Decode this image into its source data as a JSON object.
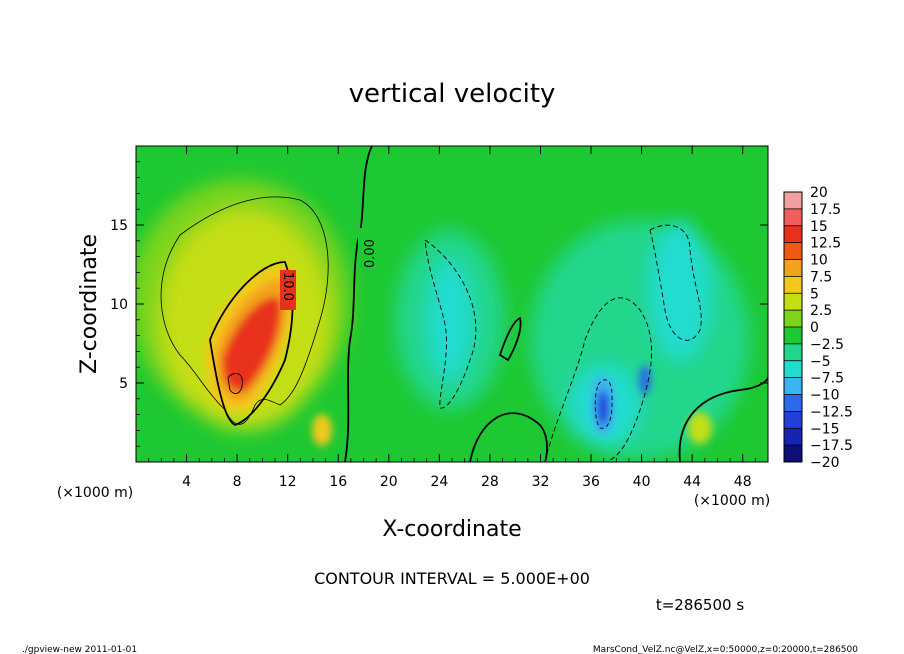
{
  "chart_data": {
    "type": "heatmap",
    "title": "vertical velocity",
    "xlabel": "X-coordinate",
    "ylabel": "Z-coordinate",
    "x_unit_label": "(×1000 m)",
    "x_unit_label_right": "(×1000 m)",
    "xlim": [
      0,
      50
    ],
    "ylim": [
      0,
      20
    ],
    "xticks": [
      4,
      8,
      12,
      16,
      20,
      24,
      28,
      32,
      36,
      40,
      44,
      48
    ],
    "yticks": [
      5,
      10,
      15
    ],
    "colorbar": {
      "levels": [
        20,
        17.5,
        15,
        12.5,
        10,
        7.5,
        5,
        2.5,
        0,
        -2.5,
        -5,
        -7.5,
        -10,
        -12.5,
        -15,
        -17.5,
        -20
      ],
      "labels": [
        "20",
        "17.5",
        "15",
        "12.5",
        "10",
        "7.5",
        "5",
        "2.5",
        "0",
        "−2.5",
        "−5",
        "−7.5",
        "−10",
        "−12.5",
        "−15",
        "−17.5",
        "−20"
      ],
      "colors": [
        "#f2a0a0",
        "#ef5f5f",
        "#e8301c",
        "#f05a14",
        "#f3a21e",
        "#f2c81e",
        "#c4de14",
        "#7cd41c",
        "#1ec832",
        "#22d68c",
        "#22dcd0",
        "#3cb4f2",
        "#2c6ae8",
        "#2040d8",
        "#1426b0",
        "#0e1078",
        "#6a20c8"
      ]
    },
    "contour_labels": [
      "10.0",
      "0.00"
    ],
    "contour_interval_text": "CONTOUR INTERVAL = 5.000E+00",
    "time_text": "t=286500 s",
    "features": [
      {
        "kind": "updraft",
        "x_center": 9.5,
        "z_center": 8,
        "w_max": 15
      },
      {
        "kind": "downdraft",
        "x_center": 37,
        "z_center": 3.5,
        "w_min": -15
      },
      {
        "kind": "downdraft",
        "x_center": 24.5,
        "z_center": 8.5,
        "w_min": -5
      },
      {
        "kind": "downdraft",
        "x_center": 44.5,
        "z_center": 9,
        "w_min": -4
      }
    ]
  },
  "footer": {
    "left": "./gpview-new   2011-01-01",
    "right": "MarsCond_VelZ.nc@VelZ,x=0:50000,z=0:20000,t=286500"
  }
}
